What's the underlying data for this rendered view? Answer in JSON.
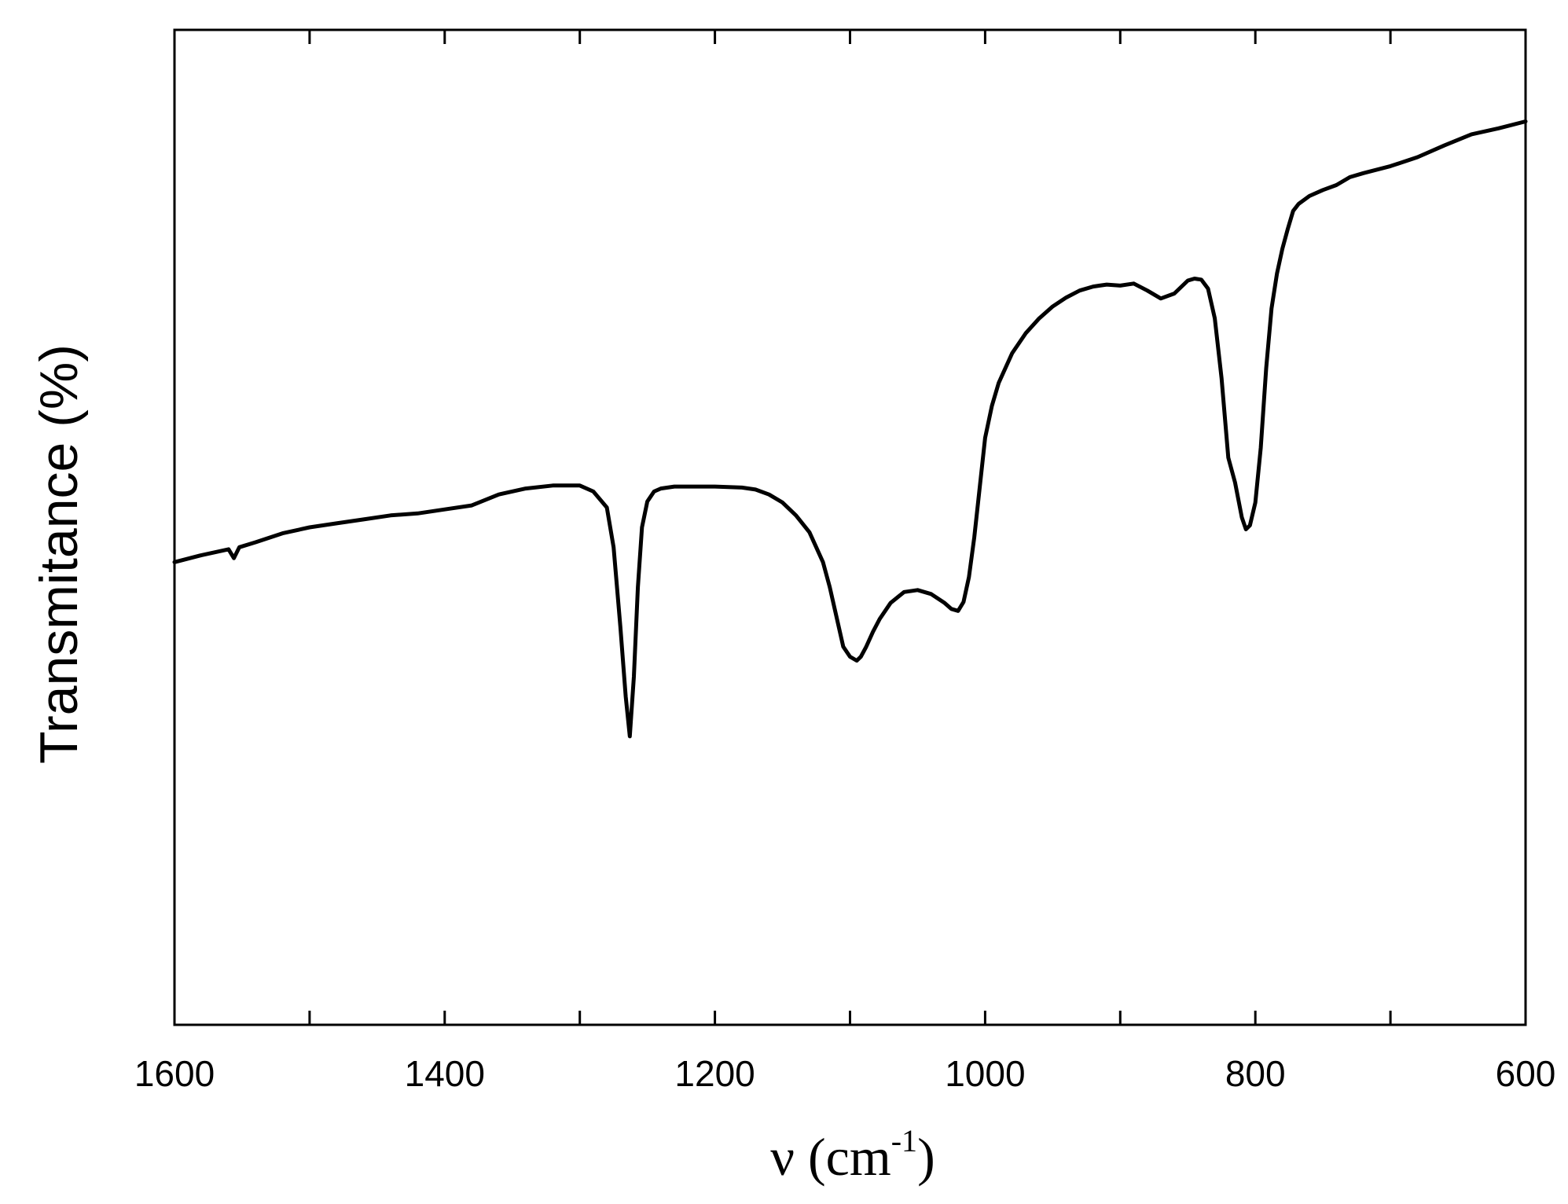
{
  "chart_data": {
    "type": "line",
    "title": "",
    "xlabel": "ν (cm",
    "xlabel_sup": "-1",
    "xlabel_close": ")",
    "ylabel": "Transmitance (%)",
    "xlim": [
      1600,
      600
    ],
    "x_reversed": true,
    "ylim": [
      0,
      100
    ],
    "y_ticks_labeled": false,
    "grid": false,
    "legend": "none",
    "x_ticks": [
      1600,
      1400,
      1200,
      1000,
      800,
      600
    ],
    "x_tick_labels": [
      "1600",
      "1400",
      "1200",
      "1000",
      "800",
      "600"
    ],
    "x_minor_ticks": [
      1500,
      1300,
      1100,
      900,
      700
    ],
    "series": [
      {
        "color": "#000000",
        "x": [
          1600,
          1580,
          1560,
          1556,
          1552,
          1540,
          1520,
          1500,
          1480,
          1460,
          1440,
          1420,
          1400,
          1380,
          1360,
          1340,
          1320,
          1300,
          1290,
          1280,
          1275,
          1270,
          1266,
          1263,
          1260,
          1257,
          1254,
          1250,
          1245,
          1240,
          1230,
          1220,
          1200,
          1180,
          1170,
          1160,
          1150,
          1140,
          1130,
          1120,
          1115,
          1110,
          1105,
          1100,
          1095,
          1092,
          1088,
          1083,
          1078,
          1070,
          1060,
          1050,
          1040,
          1030,
          1025,
          1020,
          1016,
          1012,
          1008,
          1004,
          1000,
          995,
          990,
          980,
          970,
          960,
          950,
          940,
          930,
          920,
          910,
          900,
          890,
          880,
          870,
          860,
          850,
          845,
          840,
          835,
          830,
          825,
          820,
          815,
          810,
          807,
          804,
          800,
          796,
          792,
          788,
          784,
          780,
          776,
          772,
          768,
          760,
          750,
          740,
          730,
          720,
          700,
          680,
          660,
          640,
          620,
          600
        ],
        "y": [
          46.5,
          47.2,
          47.8,
          46.9,
          48.0,
          48.5,
          49.4,
          50.0,
          50.4,
          50.8,
          51.2,
          51.4,
          51.8,
          52.2,
          53.3,
          53.9,
          54.2,
          54.2,
          53.6,
          52.0,
          48.0,
          40.0,
          33.0,
          29.0,
          35.0,
          44.0,
          50.0,
          52.6,
          53.6,
          53.9,
          54.1,
          54.1,
          54.1,
          54.0,
          53.8,
          53.3,
          52.5,
          51.2,
          49.5,
          46.5,
          44.0,
          41.0,
          38.0,
          37.0,
          36.6,
          37.0,
          38.0,
          39.5,
          40.8,
          42.4,
          43.5,
          43.7,
          43.3,
          42.4,
          41.8,
          41.6,
          42.5,
          45.0,
          49.0,
          54.0,
          59.0,
          62.2,
          64.5,
          67.5,
          69.5,
          71.0,
          72.2,
          73.1,
          73.8,
          74.2,
          74.4,
          74.3,
          74.5,
          73.8,
          73.0,
          73.5,
          74.8,
          75.0,
          74.9,
          74.0,
          71.0,
          65.0,
          57.0,
          54.5,
          51.0,
          49.8,
          50.2,
          52.5,
          58.0,
          66.0,
          72.0,
          75.5,
          78.0,
          80.0,
          81.8,
          82.5,
          83.3,
          83.9,
          84.4,
          85.2,
          85.6,
          86.3,
          87.2,
          88.4,
          89.5,
          90.1,
          90.8
        ]
      }
    ]
  }
}
